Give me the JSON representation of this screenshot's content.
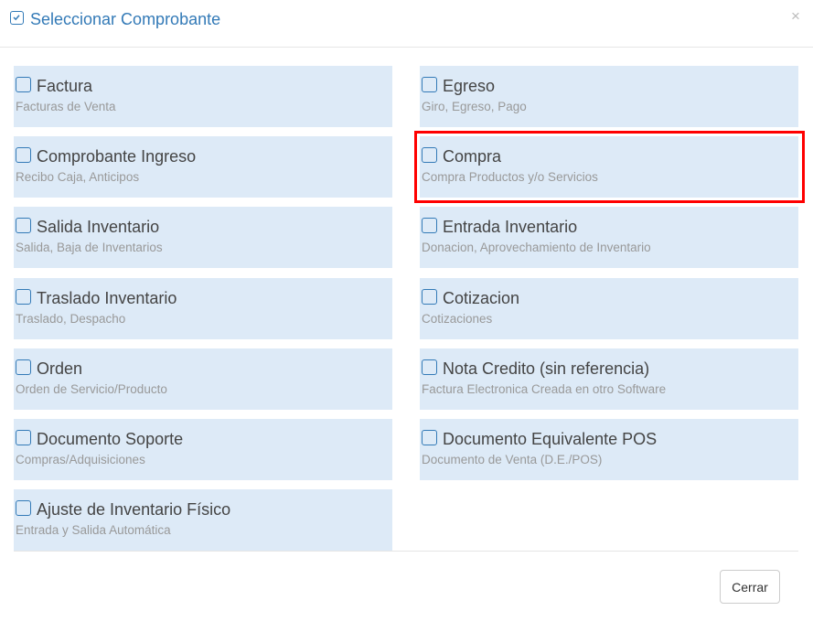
{
  "header": {
    "title": "Seleccionar Comprobante",
    "close_label": "×"
  },
  "options": [
    {
      "name": "Factura",
      "desc": "Facturas de Venta"
    },
    {
      "name": "Egreso",
      "desc": "Giro, Egreso, Pago"
    },
    {
      "name": "Comprobante Ingreso",
      "desc": "Recibo Caja, Anticipos"
    },
    {
      "name": "Compra",
      "desc": "Compra Productos y/o Servicios"
    },
    {
      "name": "Salida Inventario",
      "desc": "Salida, Baja de Inventarios"
    },
    {
      "name": "Entrada Inventario",
      "desc": "Donacion, Aprovechamiento de Inventario"
    },
    {
      "name": "Traslado Inventario",
      "desc": "Traslado, Despacho"
    },
    {
      "name": "Cotizacion",
      "desc": "Cotizaciones"
    },
    {
      "name": "Orden",
      "desc": "Orden de Servicio/Producto"
    },
    {
      "name": "Nota Credito (sin referencia)",
      "desc": "Factura Electronica Creada en otro Software"
    },
    {
      "name": "Documento Soporte",
      "desc": "Compras/Adquisiciones"
    },
    {
      "name": "Documento Equivalente POS",
      "desc": "Documento de Venta (D.E./POS)"
    },
    {
      "name": "Ajuste de Inventario Físico",
      "desc": "Entrada y Salida Automática"
    }
  ],
  "highlighted_option": "Compra",
  "colors": {
    "accent": "#337ab7",
    "card_bg": "#ddeaf7",
    "highlight": "#ff0000"
  },
  "footer": {
    "close_button": "Cerrar"
  }
}
